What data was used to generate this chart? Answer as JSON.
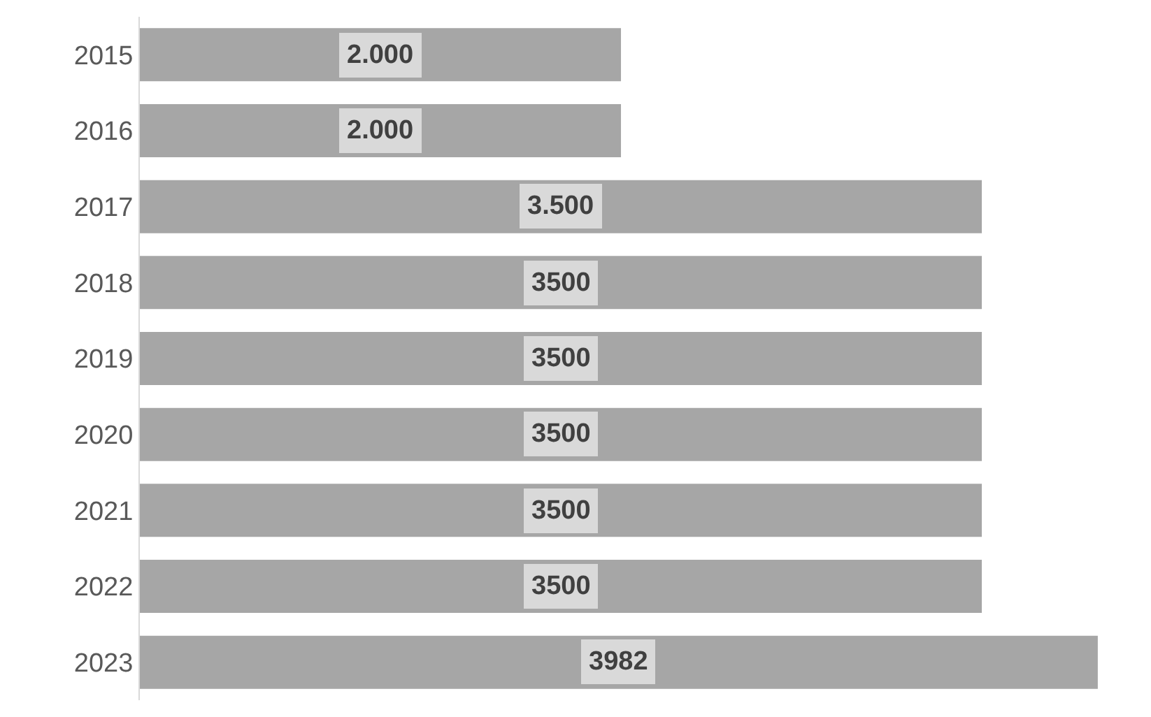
{
  "chart_data": {
    "type": "bar",
    "orientation": "horizontal",
    "categories": [
      "2015",
      "2016",
      "2017",
      "2018",
      "2019",
      "2020",
      "2021",
      "2022",
      "2023"
    ],
    "values": [
      2000,
      2000,
      3500,
      3500,
      3500,
      3500,
      3500,
      3500,
      3982
    ],
    "value_labels": [
      "2.000",
      "2.000",
      "3.500",
      "3500",
      "3500",
      "3500",
      "3500",
      "3500",
      "3982"
    ],
    "color": "#a6a6a6"
  }
}
